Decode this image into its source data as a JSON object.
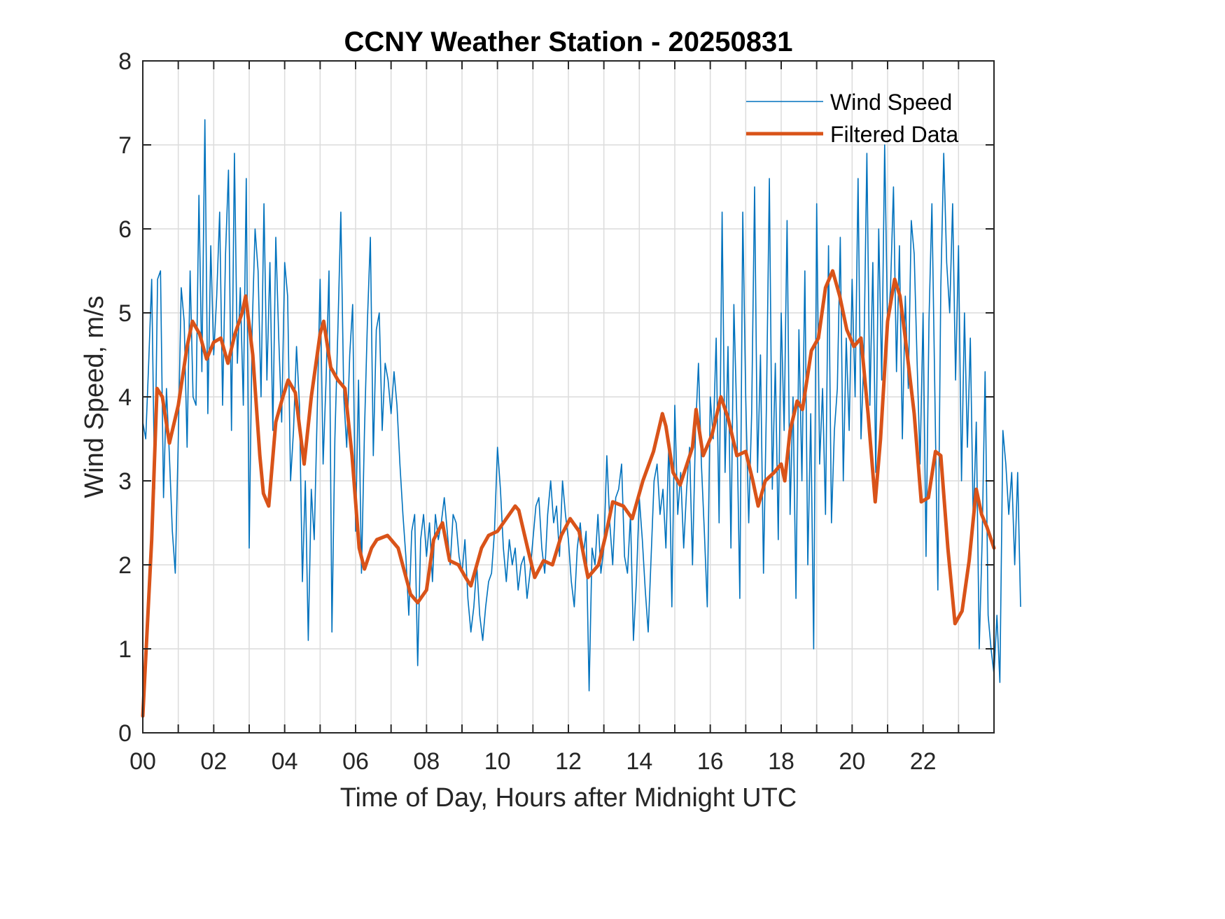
{
  "chart_data": {
    "type": "line",
    "title": "CCNY Weather Station - 20250831",
    "xlabel": "Time of Day, Hours after Midnight UTC",
    "ylabel": "Wind Speed, m/s",
    "xlim": [
      0,
      24
    ],
    "ylim": [
      0,
      8
    ],
    "grid": true,
    "legend_position": "top-right",
    "x_ticks": [
      0,
      2,
      4,
      6,
      8,
      10,
      12,
      14,
      16,
      18,
      20,
      22
    ],
    "x_tick_labels": [
      "00",
      "02",
      "04",
      "06",
      "08",
      "10",
      "12",
      "14",
      "16",
      "18",
      "20",
      "22"
    ],
    "x_minor_ticks_every_hours": 1,
    "y_ticks": [
      0,
      1,
      2,
      3,
      4,
      5,
      6,
      7,
      8
    ],
    "y_tick_labels": [
      "0",
      "1",
      "2",
      "3",
      "4",
      "5",
      "6",
      "7",
      "8"
    ],
    "colors": {
      "wind_speed": "#0072BD",
      "filtered": "#D95319"
    },
    "series": [
      {
        "name": "Wind Speed",
        "note": "raw 5-minute wind speed (approximate reading of noisy trace)",
        "x_step_hours": 0.0833333,
        "values": [
          3.7,
          3.5,
          4.4,
          5.4,
          2.9,
          5.4,
          5.5,
          2.8,
          4.1,
          3.3,
          2.4,
          1.9,
          3.5,
          5.3,
          4.9,
          3.4,
          5.5,
          4.0,
          3.9,
          6.4,
          4.3,
          7.3,
          3.8,
          5.8,
          4.5,
          5.2,
          6.2,
          3.9,
          5.7,
          6.7,
          3.6,
          6.9,
          4.4,
          5.3,
          3.9,
          6.6,
          2.2,
          4.8,
          6.0,
          5.5,
          4.0,
          6.3,
          4.2,
          5.6,
          3.6,
          5.9,
          4.7,
          3.7,
          5.6,
          5.2,
          3.0,
          3.6,
          4.6,
          3.9,
          1.8,
          3.0,
          1.1,
          2.9,
          2.3,
          3.8,
          5.4,
          3.2,
          4.2,
          5.5,
          1.2,
          3.5,
          4.8,
          6.2,
          4.0,
          3.4,
          4.5,
          5.1,
          2.4,
          4.2,
          1.9,
          3.6,
          4.9,
          5.9,
          3.3,
          4.8,
          5.0,
          3.6,
          4.4,
          4.2,
          3.8,
          4.3,
          3.9,
          3.2,
          2.6,
          2.1,
          1.4,
          2.4,
          2.6,
          0.8,
          2.3,
          2.6,
          2.1,
          2.5,
          1.8,
          2.6,
          2.3,
          2.5,
          2.8,
          2.4,
          2.0,
          2.6,
          2.5,
          2.1,
          1.9,
          2.3,
          1.6,
          1.2,
          1.5,
          2.0,
          1.4,
          1.1,
          1.5,
          1.8,
          1.9,
          2.4,
          3.4,
          2.9,
          2.2,
          1.8,
          2.3,
          2.0,
          2.2,
          1.7,
          2.0,
          2.1,
          1.6,
          1.9,
          2.3,
          2.7,
          2.8,
          2.2,
          1.9,
          2.6,
          3.0,
          2.5,
          2.7,
          2.1,
          3.0,
          2.6,
          2.3,
          1.8,
          1.5,
          2.2,
          2.5,
          2.1,
          2.4,
          0.5,
          2.2,
          2.0,
          2.6,
          1.9,
          2.2,
          3.3,
          2.5,
          2.0,
          2.8,
          2.9,
          3.2,
          2.1,
          1.9,
          2.6,
          1.1,
          1.8,
          2.8,
          2.3,
          1.7,
          1.2,
          2.1,
          3.0,
          3.2,
          2.6,
          2.9,
          2.2,
          3.5,
          1.5,
          3.9,
          2.6,
          3.1,
          2.2,
          2.9,
          3.4,
          2.0,
          3.6,
          4.4,
          3.2,
          2.4,
          1.5,
          4.0,
          3.5,
          4.7,
          2.5,
          6.2,
          3.1,
          4.6,
          2.2,
          5.1,
          3.7,
          1.6,
          6.2,
          4.0,
          2.5,
          3.8,
          6.5,
          3.1,
          4.5,
          1.9,
          3.9,
          6.6,
          2.9,
          4.4,
          2.3,
          5.0,
          3.6,
          6.1,
          2.6,
          4.0,
          1.6,
          4.8,
          3.0,
          5.5,
          2.0,
          3.8,
          1.0,
          6.3,
          3.2,
          4.1,
          2.6,
          5.8,
          2.5,
          3.6,
          4.1,
          5.9,
          3.0,
          4.7,
          3.6,
          5.4,
          4.0,
          6.6,
          3.5,
          4.5,
          6.9,
          3.9,
          5.6,
          3.1,
          6.0,
          4.2,
          7.0,
          4.8,
          5.3,
          6.5,
          4.3,
          5.8,
          3.5,
          5.2,
          4.1,
          6.1,
          5.7,
          4.4,
          3.2,
          5.0,
          2.1,
          4.9,
          6.3,
          4.0,
          1.7,
          5.3,
          6.9,
          5.6,
          5.0,
          6.3,
          4.2,
          5.8,
          3.0,
          5.0,
          3.4,
          4.7,
          2.5,
          3.7,
          1.0,
          2.3,
          4.3,
          1.4,
          1.0,
          0.7,
          1.4,
          0.6,
          3.6,
          3.2,
          2.6,
          3.1,
          2.0,
          3.1,
          1.5
        ]
      },
      {
        "name": "Filtered Data",
        "note": "smoothed trace, points as [hour, m/s]",
        "points": [
          [
            0.0,
            0.2
          ],
          [
            0.25,
            2.3
          ],
          [
            0.4,
            4.1
          ],
          [
            0.55,
            4.0
          ],
          [
            0.75,
            3.45
          ],
          [
            1.0,
            3.9
          ],
          [
            1.25,
            4.6
          ],
          [
            1.4,
            4.9
          ],
          [
            1.6,
            4.75
          ],
          [
            1.8,
            4.45
          ],
          [
            2.0,
            4.65
          ],
          [
            2.2,
            4.7
          ],
          [
            2.4,
            4.4
          ],
          [
            2.6,
            4.75
          ],
          [
            2.8,
            5.0
          ],
          [
            2.9,
            5.2
          ],
          [
            3.1,
            4.5
          ],
          [
            3.3,
            3.3
          ],
          [
            3.4,
            2.85
          ],
          [
            3.55,
            2.7
          ],
          [
            3.75,
            3.7
          ],
          [
            3.95,
            4.0
          ],
          [
            4.1,
            4.2
          ],
          [
            4.3,
            4.05
          ],
          [
            4.55,
            3.2
          ],
          [
            4.75,
            4.0
          ],
          [
            5.0,
            4.75
          ],
          [
            5.1,
            4.9
          ],
          [
            5.3,
            4.35
          ],
          [
            5.5,
            4.2
          ],
          [
            5.7,
            4.1
          ],
          [
            5.9,
            3.3
          ],
          [
            6.1,
            2.2
          ],
          [
            6.25,
            1.95
          ],
          [
            6.45,
            2.2
          ],
          [
            6.6,
            2.3
          ],
          [
            6.9,
            2.35
          ],
          [
            7.2,
            2.2
          ],
          [
            7.55,
            1.65
          ],
          [
            7.75,
            1.55
          ],
          [
            8.0,
            1.7
          ],
          [
            8.2,
            2.3
          ],
          [
            8.45,
            2.5
          ],
          [
            8.65,
            2.05
          ],
          [
            8.9,
            2.0
          ],
          [
            9.1,
            1.85
          ],
          [
            9.25,
            1.75
          ],
          [
            9.55,
            2.2
          ],
          [
            9.75,
            2.35
          ],
          [
            10.0,
            2.4
          ],
          [
            10.25,
            2.55
          ],
          [
            10.5,
            2.7
          ],
          [
            10.6,
            2.65
          ],
          [
            10.85,
            2.2
          ],
          [
            11.05,
            1.85
          ],
          [
            11.3,
            2.05
          ],
          [
            11.55,
            2.0
          ],
          [
            11.8,
            2.35
          ],
          [
            12.05,
            2.55
          ],
          [
            12.3,
            2.4
          ],
          [
            12.55,
            1.85
          ],
          [
            12.85,
            2.0
          ],
          [
            13.05,
            2.35
          ],
          [
            13.25,
            2.75
          ],
          [
            13.55,
            2.7
          ],
          [
            13.8,
            2.55
          ],
          [
            14.1,
            3.0
          ],
          [
            14.4,
            3.35
          ],
          [
            14.65,
            3.8
          ],
          [
            14.75,
            3.65
          ],
          [
            14.95,
            3.1
          ],
          [
            15.15,
            2.95
          ],
          [
            15.5,
            3.4
          ],
          [
            15.6,
            3.85
          ],
          [
            15.8,
            3.3
          ],
          [
            16.05,
            3.55
          ],
          [
            16.3,
            4.0
          ],
          [
            16.5,
            3.75
          ],
          [
            16.75,
            3.3
          ],
          [
            17.0,
            3.35
          ],
          [
            17.2,
            3.0
          ],
          [
            17.35,
            2.7
          ],
          [
            17.55,
            3.0
          ],
          [
            17.8,
            3.1
          ],
          [
            18.0,
            3.2
          ],
          [
            18.1,
            3.0
          ],
          [
            18.25,
            3.6
          ],
          [
            18.45,
            3.95
          ],
          [
            18.6,
            3.85
          ],
          [
            18.85,
            4.55
          ],
          [
            19.05,
            4.7
          ],
          [
            19.25,
            5.3
          ],
          [
            19.45,
            5.5
          ],
          [
            19.65,
            5.2
          ],
          [
            19.85,
            4.8
          ],
          [
            20.05,
            4.6
          ],
          [
            20.25,
            4.7
          ],
          [
            20.45,
            3.8
          ],
          [
            20.65,
            2.75
          ],
          [
            20.8,
            3.5
          ],
          [
            21.0,
            4.9
          ],
          [
            21.2,
            5.4
          ],
          [
            21.35,
            5.2
          ],
          [
            21.5,
            4.7
          ],
          [
            21.75,
            3.8
          ],
          [
            21.95,
            2.75
          ],
          [
            22.15,
            2.8
          ],
          [
            22.35,
            3.35
          ],
          [
            22.5,
            3.3
          ],
          [
            22.7,
            2.2
          ],
          [
            22.9,
            1.3
          ],
          [
            23.1,
            1.45
          ],
          [
            23.3,
            2.05
          ],
          [
            23.5,
            2.9
          ],
          [
            23.65,
            2.6
          ],
          [
            23.8,
            2.45
          ],
          [
            24.0,
            2.2
          ]
        ]
      }
    ],
    "legend": [
      "Wind Speed",
      "Filtered Data"
    ]
  }
}
